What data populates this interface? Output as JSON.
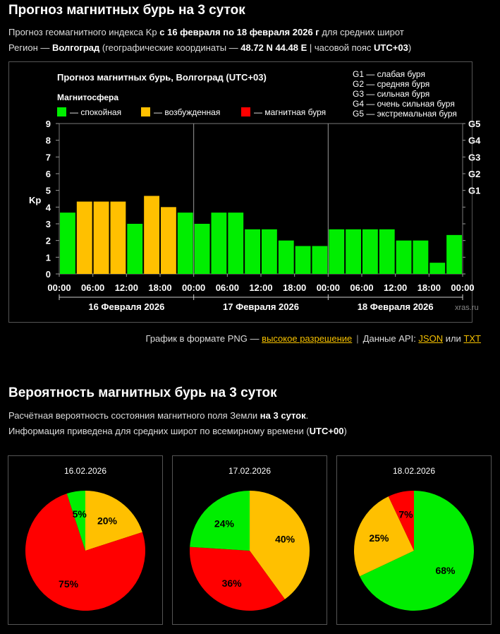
{
  "header": {
    "title": "Прогноз магнитных бурь на 3 суток",
    "line1_pre": "Прогноз геомагнитного индекса Kp ",
    "line1_bold": "с 16 февраля по 18 февраля 2026 г",
    "line1_post": " для средних широт",
    "line2_pre": "Регион — ",
    "line2_region": "Волгоград",
    "line2_mid": " (географические координаты — ",
    "line2_coords": "48.72 N 44.48 E",
    "line2_sep": " | часовой пояс ",
    "line2_tz": "UTC+03",
    "line2_post": ")"
  },
  "chart_data": {
    "type": "bar",
    "title": "Прогноз магнитных бурь, Волгоград (UTC+03)",
    "legend_title": "Магнитосфера",
    "legend": [
      {
        "label": "— спокойная",
        "color": "#00ee00"
      },
      {
        "label": "— возбужденная",
        "color": "#ffc000"
      },
      {
        "label": "— магнитная буря",
        "color": "#ff0000"
      }
    ],
    "g_legend": [
      "G1 — слабая буря",
      "G2 — средняя буря",
      "G3 — сильная буря",
      "G4 — очень сильная буря",
      "G5 — экстремальная буря"
    ],
    "ylabel": "Kp",
    "ylim": [
      0,
      9
    ],
    "yticks": [
      "0",
      "1",
      "2",
      "3",
      "4",
      "5",
      "6",
      "7",
      "8",
      "9"
    ],
    "right_ticks": [
      {
        "label": "G1",
        "value": 5
      },
      {
        "label": "G2",
        "value": 6
      },
      {
        "label": "G3",
        "value": 7
      },
      {
        "label": "G4",
        "value": 8
      },
      {
        "label": "G5",
        "value": 9
      }
    ],
    "xtick_labels": [
      "00:00",
      "06:00",
      "12:00",
      "18:00",
      "00:00",
      "06:00",
      "12:00",
      "18:00",
      "00:00",
      "06:00",
      "12:00",
      "18:00",
      "00:00"
    ],
    "days": [
      "16 Февраля 2026",
      "17 Февраля 2026",
      "18 Февраля 2026"
    ],
    "values": [
      3.67,
      4.33,
      4.33,
      4.33,
      3.0,
      4.67,
      4.0,
      3.67,
      3.0,
      3.67,
      3.67,
      2.67,
      2.67,
      2.0,
      1.67,
      1.67,
      2.67,
      2.67,
      2.67,
      2.67,
      2.0,
      2.0,
      0.67,
      2.33
    ],
    "colors": [
      "#00ee00",
      "#ffc000",
      "#ffc000",
      "#ffc000",
      "#00ee00",
      "#ffc000",
      "#ffc000",
      "#00ee00",
      "#00ee00",
      "#00ee00",
      "#00ee00",
      "#00ee00",
      "#00ee00",
      "#00ee00",
      "#00ee00",
      "#00ee00",
      "#00ee00",
      "#00ee00",
      "#00ee00",
      "#00ee00",
      "#00ee00",
      "#00ee00",
      "#00ee00",
      "#00ee00"
    ],
    "watermark": "xras.ru"
  },
  "links": {
    "png_prefix": "График в формате PNG — ",
    "png_link": "высокое разрешение",
    "api_prefix": "Данные API: ",
    "json": "JSON",
    "or": " или ",
    "txt": "TXT"
  },
  "prob": {
    "title": "Вероятность магнитных бурь на 3 суток",
    "line1_pre": "Расчётная вероятность состояния магнитного поля Земли ",
    "line1_bold": "на 3 суток",
    "line1_post": ".",
    "line2_pre": "Информация приведена для средних широт по всемирному времени (",
    "line2_bold": "UTC+00",
    "line2_post": ")",
    "pies": [
      {
        "date": "16.02.2026",
        "slices": [
          {
            "label": "20%",
            "value": 20,
            "color": "#ffc000"
          },
          {
            "label": "75%",
            "value": 75,
            "color": "#ff0000"
          },
          {
            "label": "5%",
            "value": 5,
            "color": "#00ee00"
          }
        ]
      },
      {
        "date": "17.02.2026",
        "slices": [
          {
            "label": "40%",
            "value": 40,
            "color": "#ffc000"
          },
          {
            "label": "36%",
            "value": 36,
            "color": "#ff0000"
          },
          {
            "label": "24%",
            "value": 24,
            "color": "#00ee00"
          }
        ]
      },
      {
        "date": "18.02.2026",
        "slices": [
          {
            "label": "68%",
            "value": 68,
            "color": "#00ee00"
          },
          {
            "label": "25%",
            "value": 25,
            "color": "#ffc000"
          },
          {
            "label": "7%",
            "value": 7,
            "color": "#ff0000"
          }
        ]
      }
    ]
  }
}
